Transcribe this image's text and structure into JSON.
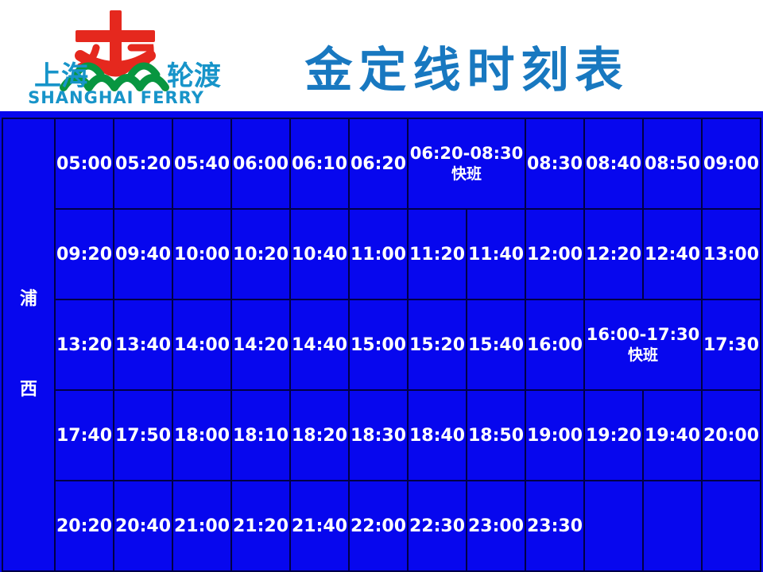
{
  "header": {
    "title": "金定线时刻表",
    "logo": {
      "name_cn_left": "上海",
      "name_cn_right": "轮渡",
      "name_en": "SHANGHAI FERRY"
    }
  },
  "table": {
    "terminal": "浦西",
    "rows": [
      {
        "cells": [
          {
            "t": "05:00"
          },
          {
            "t": "05:20"
          },
          {
            "t": "05:40"
          },
          {
            "t": "06:00"
          },
          {
            "t": "06:10"
          },
          {
            "t": "06:20"
          },
          {
            "t": "06:20-08:30",
            "sub": "快班",
            "span": 2
          },
          {
            "t": "08:30"
          },
          {
            "t": "08:40"
          },
          {
            "t": "08:50"
          },
          {
            "t": "09:00"
          }
        ]
      },
      {
        "cells": [
          {
            "t": "09:20"
          },
          {
            "t": "09:40"
          },
          {
            "t": "10:00"
          },
          {
            "t": "10:20"
          },
          {
            "t": "10:40"
          },
          {
            "t": "11:00"
          },
          {
            "t": "11:20"
          },
          {
            "t": "11:40"
          },
          {
            "t": "12:00"
          },
          {
            "t": "12:20"
          },
          {
            "t": "12:40"
          },
          {
            "t": "13:00"
          }
        ]
      },
      {
        "cells": [
          {
            "t": "13:20"
          },
          {
            "t": "13:40"
          },
          {
            "t": "14:00"
          },
          {
            "t": "14:20"
          },
          {
            "t": "14:40"
          },
          {
            "t": "15:00"
          },
          {
            "t": "15:20"
          },
          {
            "t": "15:40"
          },
          {
            "t": "16:00"
          },
          {
            "t": "16:00-17:30",
            "sub": "快班",
            "span": 2
          },
          {
            "t": "17:30"
          }
        ]
      },
      {
        "cells": [
          {
            "t": "17:40"
          },
          {
            "t": "17:50"
          },
          {
            "t": "18:00"
          },
          {
            "t": "18:10"
          },
          {
            "t": "18:20"
          },
          {
            "t": "18:30"
          },
          {
            "t": "18:40"
          },
          {
            "t": "18:50"
          },
          {
            "t": "19:00"
          },
          {
            "t": "19:20"
          },
          {
            "t": "19:40"
          },
          {
            "t": "20:00"
          }
        ]
      },
      {
        "cells": [
          {
            "t": "20:20"
          },
          {
            "t": "20:40"
          },
          {
            "t": "21:00"
          },
          {
            "t": "21:20"
          },
          {
            "t": "21:40"
          },
          {
            "t": "22:00"
          },
          {
            "t": "22:30"
          },
          {
            "t": "23:00"
          },
          {
            "t": "23:30"
          },
          {
            "t": ""
          },
          {
            "t": ""
          },
          {
            "t": ""
          }
        ]
      }
    ]
  },
  "colors": {
    "title_blue": "#1878c0",
    "cell_blue": "#0707ee",
    "grid_line": "#000046",
    "logo_red": "#e5281e",
    "logo_green": "#089640",
    "logo_teal": "#1794c9",
    "text_white": "#ffffff",
    "header_bg": "#ffffff"
  }
}
